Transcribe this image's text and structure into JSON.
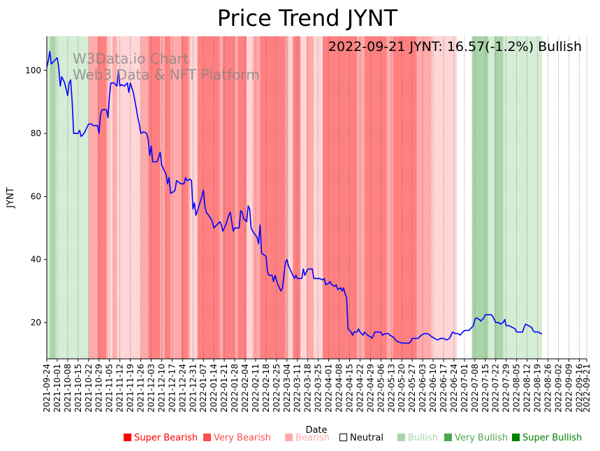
{
  "chart_data": {
    "type": "line",
    "title": "Price Trend JYNT",
    "annotation": "2022-09-21 JYNT: 16.57(-1.2%) Bullish",
    "watermark": [
      "W3Data.io Chart",
      "Web3 Data & NFT Platform"
    ],
    "xlabel": "Date",
    "ylabel": "JYNT",
    "ylim": [
      8.5,
      110.8
    ],
    "yticks": [
      20,
      40,
      60,
      80,
      100
    ],
    "x_start": "2021-09-24",
    "x_end": "2022-09-21",
    "xtick_labels": [
      "2021-09-24",
      "2021-10-01",
      "2021-10-08",
      "2021-10-15",
      "2021-10-22",
      "2021-10-29",
      "2021-11-05",
      "2021-11-12",
      "2021-11-19",
      "2021-11-26",
      "2021-12-03",
      "2021-12-10",
      "2021-12-17",
      "2021-12-24",
      "2021-12-31",
      "2022-01-07",
      "2022-01-14",
      "2022-01-21",
      "2022-01-28",
      "2022-02-04",
      "2022-02-11",
      "2022-02-18",
      "2022-02-25",
      "2022-03-04",
      "2022-03-11",
      "2022-03-18",
      "2022-03-25",
      "2022-04-01",
      "2022-04-08",
      "2022-04-15",
      "2022-04-22",
      "2022-04-29",
      "2022-05-06",
      "2022-05-13",
      "2022-05-20",
      "2022-05-27",
      "2022-06-03",
      "2022-06-10",
      "2022-06-17",
      "2022-06-24",
      "2022-07-01",
      "2022-07-08",
      "2022-07-15",
      "2022-07-22",
      "2022-07-29",
      "2022-08-05",
      "2022-08-12",
      "2022-08-19",
      "2022-08-26",
      "2022-09-02",
      "2022-09-09",
      "2022-09-16",
      "2022-09-21"
    ],
    "series": [
      {
        "name": "JYNT",
        "color": "#0000ff",
        "points": [
          [
            0,
            101
          ],
          [
            1,
            103
          ],
          [
            2,
            106
          ],
          [
            3,
            102
          ],
          [
            5,
            103
          ],
          [
            7,
            104
          ],
          [
            8,
            101
          ],
          [
            9,
            95
          ],
          [
            10,
            98
          ],
          [
            11,
            97
          ],
          [
            12,
            96
          ],
          [
            14,
            92
          ],
          [
            15,
            96
          ],
          [
            16,
            97
          ],
          [
            17,
            90
          ],
          [
            18,
            80
          ],
          [
            21,
            80
          ],
          [
            22,
            81
          ],
          [
            23,
            79
          ],
          [
            25,
            80
          ],
          [
            27,
            82
          ],
          [
            28,
            83
          ],
          [
            30,
            83
          ],
          [
            31,
            82.5
          ],
          [
            34,
            82.5
          ],
          [
            35,
            80
          ],
          [
            36,
            86
          ],
          [
            37,
            87.5
          ],
          [
            40,
            87.5
          ],
          [
            41,
            85
          ],
          [
            42,
            92
          ],
          [
            43,
            96
          ],
          [
            45,
            96
          ],
          [
            47,
            95
          ],
          [
            48,
            100
          ],
          [
            49,
            95
          ],
          [
            50,
            95.5
          ],
          [
            52,
            95
          ],
          [
            54,
            96
          ],
          [
            55,
            93
          ],
          [
            56,
            96
          ],
          [
            58,
            93
          ],
          [
            60,
            88
          ],
          [
            61,
            85
          ],
          [
            62,
            83
          ],
          [
            63,
            80
          ],
          [
            65,
            80.5
          ],
          [
            67,
            80
          ],
          [
            68,
            78
          ],
          [
            69,
            73
          ],
          [
            70,
            76
          ],
          [
            71,
            71
          ],
          [
            74,
            71
          ],
          [
            76,
            74
          ],
          [
            77,
            70
          ],
          [
            79,
            68
          ],
          [
            80,
            67
          ],
          [
            81,
            64
          ],
          [
            82,
            66
          ],
          [
            83,
            61
          ],
          [
            85,
            61.5
          ],
          [
            86,
            62
          ],
          [
            87,
            65
          ],
          [
            90,
            64
          ],
          [
            92,
            64
          ],
          [
            93,
            66
          ],
          [
            94,
            65
          ],
          [
            96,
            65.5
          ],
          [
            97,
            65
          ],
          [
            98,
            56
          ],
          [
            99,
            58
          ],
          [
            100,
            54
          ],
          [
            102,
            57
          ],
          [
            104,
            60
          ],
          [
            105,
            62
          ],
          [
            106,
            57
          ],
          [
            107,
            55
          ],
          [
            110,
            53
          ],
          [
            111,
            52
          ],
          [
            112,
            50
          ],
          [
            114,
            51
          ],
          [
            116,
            52
          ],
          [
            117,
            51
          ],
          [
            118,
            49
          ],
          [
            120,
            51
          ],
          [
            122,
            54
          ],
          [
            123,
            55
          ],
          [
            124,
            52
          ],
          [
            125,
            49
          ],
          [
            126,
            50
          ],
          [
            129,
            50
          ],
          [
            130,
            55.5
          ],
          [
            131,
            55
          ],
          [
            132,
            53
          ],
          [
            134,
            52
          ],
          [
            135,
            57
          ],
          [
            136,
            56
          ],
          [
            137,
            50
          ],
          [
            138,
            49
          ],
          [
            141,
            47
          ],
          [
            142,
            45
          ],
          [
            143,
            51
          ],
          [
            144,
            42
          ],
          [
            147,
            41
          ],
          [
            148,
            36
          ],
          [
            149,
            35
          ],
          [
            151,
            35
          ],
          [
            152,
            33
          ],
          [
            153,
            35
          ],
          [
            155,
            32
          ],
          [
            156,
            31
          ],
          [
            157,
            30
          ],
          [
            158,
            31
          ],
          [
            159,
            35
          ],
          [
            160,
            39
          ],
          [
            161,
            40
          ],
          [
            162,
            38
          ],
          [
            163,
            37
          ],
          [
            165,
            35
          ],
          [
            166,
            34
          ],
          [
            167,
            35
          ],
          [
            168,
            34
          ],
          [
            171,
            34
          ],
          [
            172,
            37
          ],
          [
            173,
            35
          ],
          [
            174,
            36
          ],
          [
            175,
            37
          ],
          [
            178,
            37
          ],
          [
            179,
            34
          ],
          [
            182,
            34
          ],
          [
            183,
            34
          ],
          [
            185,
            33.5
          ],
          [
            186,
            34
          ],
          [
            187,
            32
          ],
          [
            189,
            32.5
          ],
          [
            190,
            33
          ],
          [
            191,
            32
          ],
          [
            193,
            31.5
          ],
          [
            194,
            32
          ],
          [
            195,
            30.5
          ],
          [
            197,
            31
          ],
          [
            198,
            30
          ],
          [
            199,
            31
          ],
          [
            200,
            29
          ],
          [
            201,
            28
          ],
          [
            202,
            18
          ],
          [
            204,
            17
          ],
          [
            205,
            16
          ],
          [
            206,
            17
          ],
          [
            208,
            17
          ],
          [
            209,
            18
          ],
          [
            210,
            17
          ],
          [
            212,
            16
          ],
          [
            213,
            17
          ],
          [
            214,
            16.5
          ],
          [
            215,
            16
          ],
          [
            217,
            15.5
          ],
          [
            218,
            15
          ],
          [
            219,
            16
          ],
          [
            220,
            17
          ],
          [
            224,
            17
          ],
          [
            225,
            16
          ],
          [
            227,
            16.5
          ],
          [
            229,
            16.5
          ],
          [
            230,
            16
          ],
          [
            232,
            15.5
          ],
          [
            233,
            15
          ],
          [
            235,
            14
          ],
          [
            238,
            13.5
          ],
          [
            239,
            13.5
          ],
          [
            241,
            13.5
          ],
          [
            243,
            13.5
          ],
          [
            244,
            14
          ],
          [
            245,
            15
          ],
          [
            247,
            15
          ],
          [
            249,
            15
          ],
          [
            250,
            15.5
          ],
          [
            251,
            16
          ],
          [
            253,
            16.5
          ],
          [
            255,
            16.5
          ],
          [
            257,
            16
          ],
          [
            258,
            15.5
          ],
          [
            260,
            15
          ],
          [
            262,
            14.5
          ],
          [
            264,
            15
          ],
          [
            266,
            15
          ],
          [
            268,
            14.5
          ],
          [
            270,
            15
          ],
          [
            271,
            16
          ],
          [
            272,
            17
          ],
          [
            274,
            16.5
          ],
          [
            276,
            16.5
          ],
          [
            277,
            16
          ],
          [
            279,
            17
          ],
          [
            280,
            17.5
          ],
          [
            283,
            17.5
          ],
          [
            284,
            18
          ],
          [
            286,
            19
          ],
          [
            287,
            21
          ],
          [
            288,
            21.5
          ],
          [
            290,
            21
          ],
          [
            291,
            20.5
          ],
          [
            293,
            21.5
          ],
          [
            294,
            22.5
          ],
          [
            296,
            22.5
          ],
          [
            298,
            22.5
          ],
          [
            299,
            22
          ],
          [
            300,
            21
          ],
          [
            301,
            20
          ],
          [
            303,
            20
          ],
          [
            304,
            19.5
          ],
          [
            306,
            20
          ],
          [
            307,
            21
          ],
          [
            308,
            19
          ],
          [
            310,
            19
          ],
          [
            312,
            18.5
          ],
          [
            314,
            18
          ],
          [
            315,
            17
          ],
          [
            317,
            17
          ],
          [
            319,
            17
          ],
          [
            320,
            18.5
          ],
          [
            321,
            19.5
          ],
          [
            323,
            19
          ],
          [
            325,
            18.5
          ],
          [
            326,
            17.5
          ],
          [
            327,
            17
          ],
          [
            330,
            17
          ],
          [
            331,
            16.5
          ],
          [
            332,
            16.6
          ]
        ]
      }
    ],
    "sentiment_bands": [
      {
        "start": 0,
        "end": 2,
        "level": "bullish"
      },
      {
        "start": 2,
        "end": 6,
        "level": "very_bullish"
      },
      {
        "start": 6,
        "end": 28,
        "level": "bullish"
      },
      {
        "start": 28,
        "end": 34,
        "level": "very_bearish"
      },
      {
        "start": 34,
        "end": 40,
        "level": "super_bearish"
      },
      {
        "start": 40,
        "end": 41,
        "level": "very_bearish"
      },
      {
        "start": 41,
        "end": 44,
        "level": "bearish"
      },
      {
        "start": 44,
        "end": 47,
        "level": "very_bearish"
      },
      {
        "start": 47,
        "end": 63,
        "level": "bearish"
      },
      {
        "start": 63,
        "end": 68,
        "level": "very_bearish"
      },
      {
        "start": 68,
        "end": 76,
        "level": "super_bearish"
      },
      {
        "start": 76,
        "end": 79,
        "level": "very_bearish"
      },
      {
        "start": 79,
        "end": 83,
        "level": "super_bearish"
      },
      {
        "start": 83,
        "end": 90,
        "level": "very_bearish"
      },
      {
        "start": 90,
        "end": 95,
        "level": "super_bearish"
      },
      {
        "start": 95,
        "end": 96,
        "level": "very_bearish"
      },
      {
        "start": 96,
        "end": 101,
        "level": "bearish"
      },
      {
        "start": 101,
        "end": 116,
        "level": "super_bearish"
      },
      {
        "start": 116,
        "end": 118,
        "level": "very_bearish"
      },
      {
        "start": 118,
        "end": 126,
        "level": "super_bearish"
      },
      {
        "start": 126,
        "end": 128,
        "level": "very_bearish"
      },
      {
        "start": 128,
        "end": 134,
        "level": "super_bearish"
      },
      {
        "start": 134,
        "end": 138,
        "level": "bearish"
      },
      {
        "start": 138,
        "end": 143,
        "level": "very_bearish"
      },
      {
        "start": 143,
        "end": 160,
        "level": "super_bearish"
      },
      {
        "start": 160,
        "end": 162,
        "level": "very_bearish"
      },
      {
        "start": 162,
        "end": 165,
        "level": "bearish"
      },
      {
        "start": 165,
        "end": 170,
        "level": "super_bearish"
      },
      {
        "start": 170,
        "end": 174,
        "level": "bearish"
      },
      {
        "start": 174,
        "end": 179,
        "level": "very_bearish"
      },
      {
        "start": 179,
        "end": 185,
        "level": "bearish"
      },
      {
        "start": 185,
        "end": 208,
        "level": "super_bearish"
      },
      {
        "start": 208,
        "end": 213,
        "level": "very_bearish"
      },
      {
        "start": 213,
        "end": 228,
        "level": "super_bearish"
      },
      {
        "start": 228,
        "end": 232,
        "level": "very_bearish"
      },
      {
        "start": 232,
        "end": 248,
        "level": "super_bearish"
      },
      {
        "start": 248,
        "end": 258,
        "level": "very_bearish"
      },
      {
        "start": 258,
        "end": 275,
        "level": "bearish"
      },
      {
        "start": 275,
        "end": 285,
        "level": "neutral"
      },
      {
        "start": 285,
        "end": 296,
        "level": "very_bullish"
      },
      {
        "start": 296,
        "end": 300,
        "level": "bullish"
      },
      {
        "start": 300,
        "end": 306,
        "level": "very_bullish"
      },
      {
        "start": 306,
        "end": 332,
        "level": "bullish"
      }
    ],
    "legend": [
      {
        "label": "Super Bearish",
        "level": "super_bearish"
      },
      {
        "label": "Very Bearish",
        "level": "very_bearish"
      },
      {
        "label": "Bearish",
        "level": "bearish"
      },
      {
        "label": "Neutral",
        "level": "neutral"
      },
      {
        "label": "Bullish",
        "level": "bullish"
      },
      {
        "label": "Very Bullish",
        "level": "very_bullish"
      },
      {
        "label": "Super Bullish",
        "level": "super_bullish"
      }
    ],
    "colors": {
      "super_bearish": "#ff8080",
      "very_bearish": "#ffaaaa",
      "bearish": "#ffd5d5",
      "neutral": "#ffffff",
      "bullish": "#d5ecd5",
      "very_bullish": "#aad5aa",
      "super_bullish": "#80c080",
      "legend_super_bearish": "#ff0000",
      "legend_very_bearish": "#ff4d4d",
      "legend_bearish": "#ffaaaa",
      "legend_neutral": "#000000",
      "legend_bullish": "#aad5aa",
      "legend_very_bullish": "#4da64d",
      "legend_super_bullish": "#008000"
    }
  }
}
